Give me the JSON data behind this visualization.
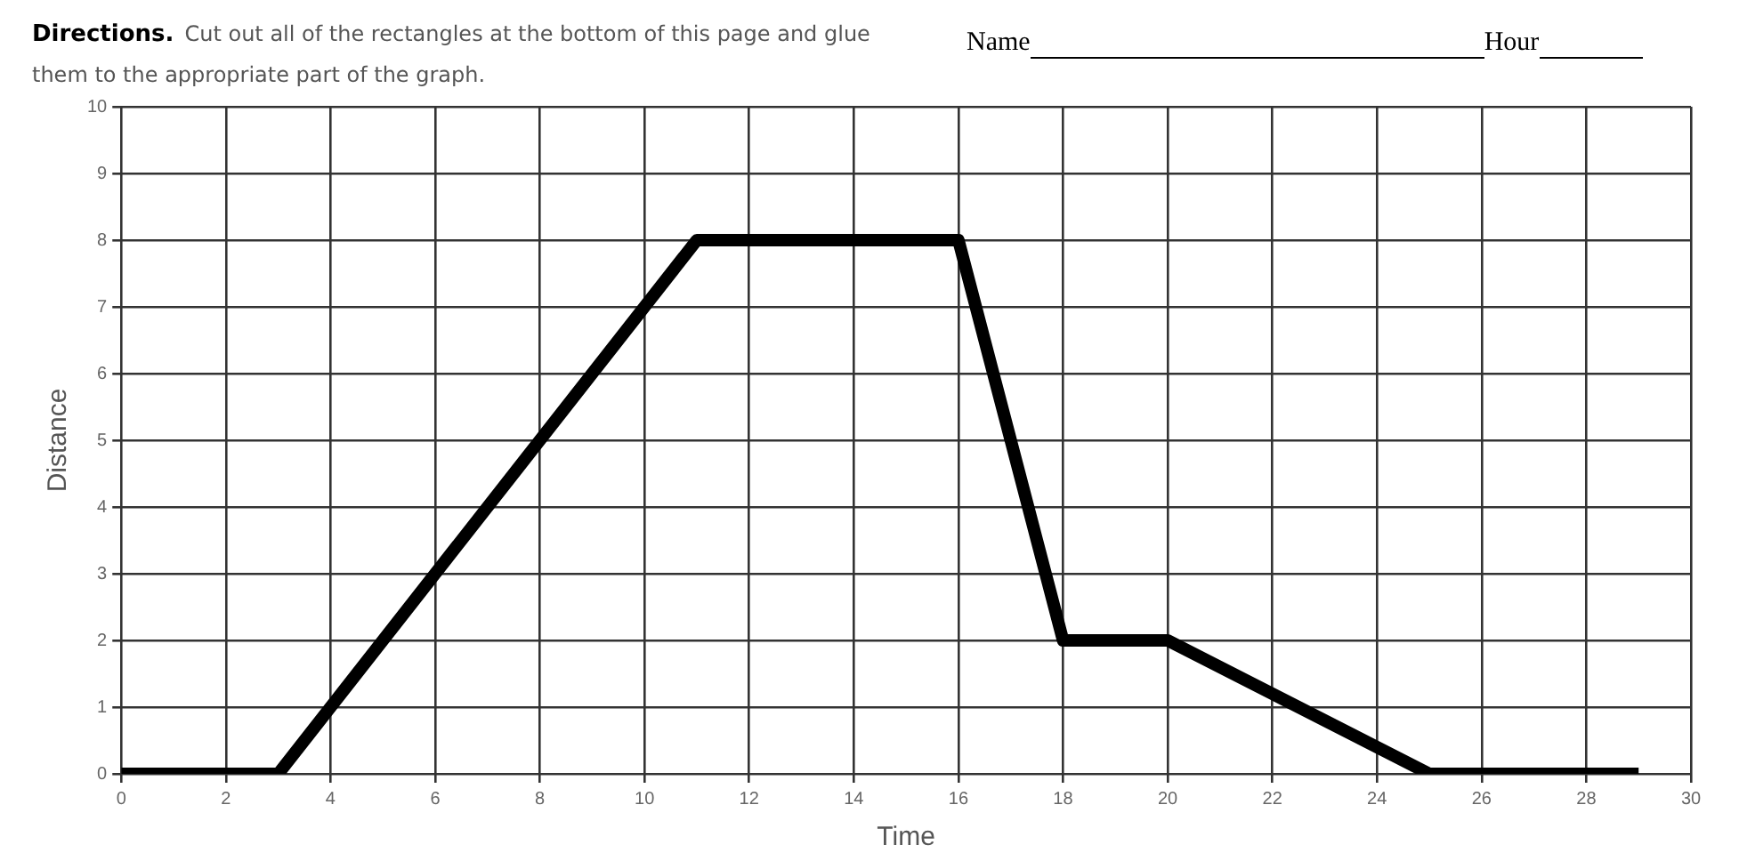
{
  "chart_data": {
    "type": "line",
    "xlabel": "Time",
    "ylabel": "Distance",
    "annotations": [
      "Directions.",
      "Cut out all of the rectangles at the bottom of this page and glue them to the appropriate part of the graph.",
      "Name",
      "Hour"
    ],
    "x": [
      0,
      3,
      11,
      16,
      18,
      20,
      25,
      29
    ],
    "series": [
      {
        "color": "#000000",
        "values": [
          0,
          0,
          8,
          8,
          2,
          2,
          0,
          0
        ]
      }
    ],
    "xlim": [
      0,
      30
    ],
    "xticks": [
      0,
      2,
      4,
      6,
      8,
      10,
      12,
      14,
      16,
      18,
      20,
      22,
      24,
      26,
      28,
      30
    ],
    "ylim": [
      0,
      10
    ],
    "yticks": [
      0,
      1,
      2,
      3,
      4,
      5,
      6,
      7,
      8,
      9,
      10
    ],
    "grid": true,
    "legend": false,
    "marker": "none",
    "line_style": "solid"
  }
}
